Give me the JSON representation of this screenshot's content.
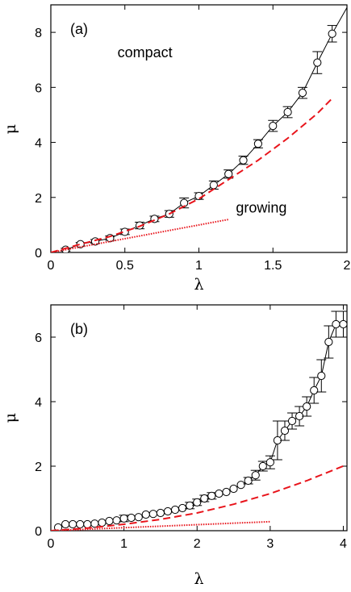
{
  "chart_data": [
    {
      "type": "line",
      "panel_label": "(a)",
      "xlabel": "λ",
      "ylabel": "μ",
      "xlim": [
        0,
        2
      ],
      "ylim": [
        0,
        9
      ],
      "xticks": [
        0,
        0.5,
        1,
        1.5,
        2
      ],
      "xtick_labels": [
        "0",
        "0.5",
        "1",
        "1.5",
        "2"
      ],
      "yticks": [
        0,
        2,
        4,
        6,
        8
      ],
      "ytick_labels": [
        "0",
        "2",
        "4",
        "6",
        "8"
      ],
      "annotations": [
        {
          "text": "compact",
          "x": 0.45,
          "y": 7.1
        },
        {
          "text": "growing",
          "x": 1.25,
          "y": 1.45
        }
      ],
      "colors": {
        "markers": "#000000",
        "dashed": "#e8141b",
        "dotted": "#e8141b"
      },
      "series": [
        {
          "style": "markers-line",
          "x": [
            0.1,
            0.2,
            0.3,
            0.4,
            0.5,
            0.6,
            0.7,
            0.8,
            0.9,
            1.0,
            1.1,
            1.2,
            1.3,
            1.4,
            1.5,
            1.6,
            1.7,
            1.8,
            1.9
          ],
          "y": [
            0.1,
            0.3,
            0.4,
            0.52,
            0.75,
            0.98,
            1.22,
            1.4,
            1.8,
            2.05,
            2.45,
            2.85,
            3.35,
            3.95,
            4.6,
            5.1,
            5.8,
            6.9,
            7.95
          ],
          "err": [
            0.05,
            0.06,
            0.07,
            0.08,
            0.1,
            0.12,
            0.1,
            0.12,
            0.18,
            0.12,
            0.15,
            0.15,
            0.15,
            0.15,
            0.2,
            0.2,
            0.2,
            0.4,
            0.3
          ],
          "line_x": [
            0.1,
            0.2,
            0.3,
            0.4,
            0.5,
            0.6,
            0.7,
            0.8,
            0.9,
            1.0,
            1.1,
            1.2,
            1.3,
            1.4,
            1.5,
            1.6,
            1.7,
            1.8,
            1.9,
            2.0
          ],
          "line_y": [
            0.1,
            0.3,
            0.4,
            0.52,
            0.75,
            0.98,
            1.22,
            1.4,
            1.8,
            2.05,
            2.45,
            2.85,
            3.35,
            3.95,
            4.6,
            5.1,
            5.8,
            6.9,
            7.95,
            8.9
          ]
        },
        {
          "style": "dashed",
          "x": [
            0,
            0.2,
            0.4,
            0.6,
            0.8,
            1.0,
            1.2,
            1.4,
            1.6,
            1.8,
            1.9
          ],
          "y": [
            0,
            0.3,
            0.58,
            0.95,
            1.4,
            1.95,
            2.65,
            3.35,
            4.15,
            5.05,
            5.6
          ]
        },
        {
          "style": "dotted",
          "x": [
            0,
            1.2
          ],
          "y": [
            0,
            1.2
          ]
        }
      ]
    },
    {
      "type": "line",
      "panel_label": "(b)",
      "xlabel": "λ",
      "ylabel": "μ",
      "xlim": [
        0,
        4.05
      ],
      "ylim": [
        0,
        7
      ],
      "xticks": [
        0,
        1,
        2,
        3,
        4
      ],
      "xtick_labels": [
        "0",
        "1",
        "2",
        "3",
        "4"
      ],
      "yticks": [
        0,
        2,
        4,
        6
      ],
      "ytick_labels": [
        "0",
        "2",
        "4",
        "6"
      ],
      "annotations": [],
      "colors": {
        "markers": "#000000",
        "dashed": "#e8141b",
        "dotted": "#e8141b"
      },
      "series": [
        {
          "style": "markers-line",
          "x": [
            0.1,
            0.2,
            0.3,
            0.4,
            0.5,
            0.6,
            0.7,
            0.8,
            0.9,
            1.0,
            1.1,
            1.2,
            1.3,
            1.4,
            1.5,
            1.6,
            1.7,
            1.8,
            1.9,
            2.0,
            2.1,
            2.2,
            2.3,
            2.4,
            2.5,
            2.6,
            2.7,
            2.8,
            2.9,
            3.0,
            3.1,
            3.2,
            3.3,
            3.4,
            3.5,
            3.6,
            3.7,
            3.8,
            3.9,
            4.0
          ],
          "y": [
            0.1,
            0.2,
            0.2,
            0.2,
            0.2,
            0.22,
            0.25,
            0.3,
            0.32,
            0.38,
            0.4,
            0.42,
            0.5,
            0.52,
            0.55,
            0.6,
            0.65,
            0.7,
            0.78,
            0.88,
            1.0,
            1.08,
            1.15,
            1.2,
            1.3,
            1.42,
            1.55,
            1.72,
            2.0,
            2.12,
            2.8,
            3.1,
            3.4,
            3.55,
            3.85,
            4.35,
            4.8,
            5.85,
            6.4,
            6.4
          ],
          "err": [
            0,
            0,
            0,
            0,
            0,
            0,
            0,
            0,
            0,
            0.1,
            0,
            0,
            0,
            0,
            0,
            0,
            0,
            0,
            0.1,
            0.1,
            0.1,
            0.1,
            0,
            0,
            0,
            0,
            0.1,
            0.15,
            0.15,
            0.2,
            0.6,
            0.3,
            0.25,
            0.3,
            0.3,
            0.4,
            0.5,
            0.5,
            0.4,
            0.4
          ]
        },
        {
          "style": "dashed",
          "x": [
            0,
            0.5,
            1.0,
            1.5,
            2.0,
            2.5,
            3.0,
            3.5,
            4.05
          ],
          "y": [
            0,
            0.08,
            0.2,
            0.35,
            0.55,
            0.82,
            1.15,
            1.55,
            2.05
          ]
        },
        {
          "style": "dotted",
          "x": [
            0,
            3.0
          ],
          "y": [
            0,
            0.28
          ]
        }
      ]
    }
  ]
}
